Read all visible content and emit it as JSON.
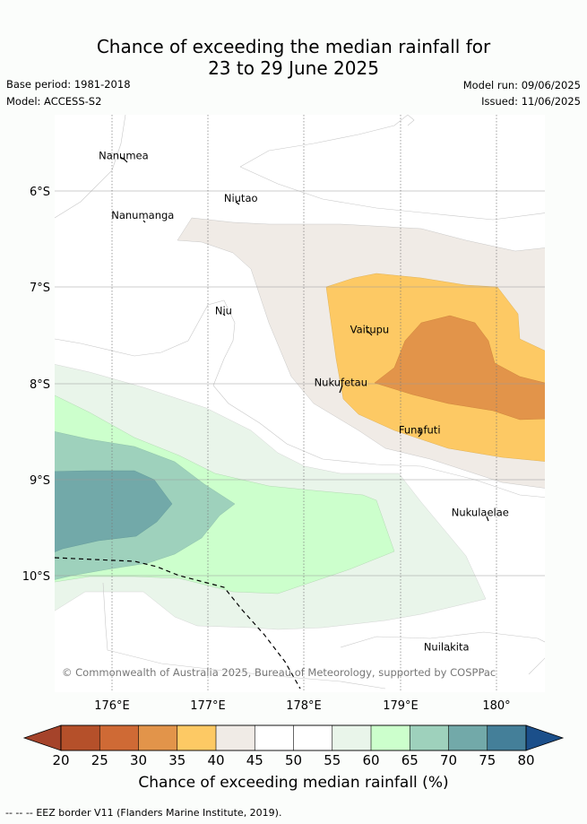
{
  "title_line1": "Chance of exceeding the median rainfall for",
  "title_line2": "23 to 29 June 2025",
  "base_period": "Base period: 1981-2018",
  "model": "Model: ACCESS-S2",
  "model_run": "Model run: 09/06/2025",
  "issued": "Issued: 11/06/2025",
  "copyright": "© Commonwealth of Australia 2025, Bureau of Meteorology, supported by COSPPac",
  "lat_labels": [
    "6°S",
    "7°S",
    "8°S",
    "9°S",
    "10°S"
  ],
  "lon_labels": [
    "176°E",
    "177°E",
    "178°E",
    "179°E",
    "180°"
  ],
  "places": [
    {
      "name": "Nanumea",
      "lon": 176.12,
      "lat": -5.67
    },
    {
      "name": "Nanumanga",
      "lon": 176.32,
      "lat": -6.29
    },
    {
      "name": "Niutao",
      "lon": 177.34,
      "lat": -6.11
    },
    {
      "name": "Niu",
      "lon": 177.16,
      "lat": -7.28
    },
    {
      "name": "Vaitupu",
      "lon": 178.68,
      "lat": -7.48
    },
    {
      "name": "Nukufetau",
      "lon": 178.38,
      "lat": -8.03
    },
    {
      "name": "Funafuti",
      "lon": 179.2,
      "lat": -8.52
    },
    {
      "name": "Nukulaelae",
      "lon": 179.83,
      "lat": -9.38
    },
    {
      "name": "Nuilakita",
      "lon": 179.48,
      "lat": -10.78
    }
  ],
  "colorbar": {
    "ticks": [
      "20",
      "25",
      "30",
      "35",
      "40",
      "45",
      "50",
      "55",
      "60",
      "65",
      "70",
      "75",
      "80"
    ],
    "colors": [
      "#b5502a",
      "#cf6a35",
      "#e2944a",
      "#fdc964",
      "#f0ebe6",
      "#ffffff",
      "#ffffff",
      "#e9f5ea",
      "#ccffcc",
      "#9ed1bc",
      "#72a9a9",
      "#447f99"
    ],
    "under_color": "#a5432a",
    "over_color": "#1b4f8a",
    "label": "Chance of exceeding median rainfall (%)"
  },
  "legend": {
    "eez_symbol": "-- -- --",
    "eez_text": "EEZ border V11 (Flanders Marine Institute, 2019)."
  }
}
